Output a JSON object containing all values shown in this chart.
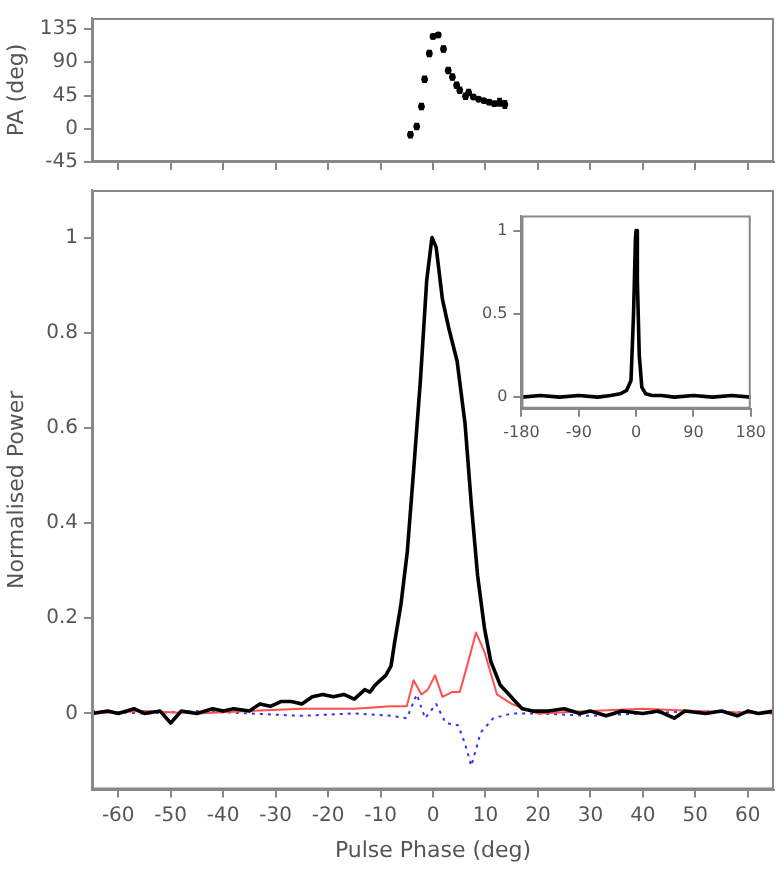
{
  "chart_data": [
    {
      "type": "scatter",
      "ylabel": "PA (deg)",
      "xlim": [
        -65,
        65
      ],
      "ylim": [
        -45,
        150
      ],
      "yticks": [
        -45,
        0,
        45,
        90,
        135
      ],
      "xticks": [
        -60,
        -50,
        -40,
        -30,
        -20,
        -10,
        0,
        10,
        20,
        30,
        40,
        50,
        60
      ],
      "tick_labels": "y",
      "grid": false,
      "series": [
        {
          "color": "#000000",
          "x": [
            -4.3,
            -3.1,
            -2.2,
            -1.6,
            -0.7,
            0,
            1.0,
            2.0,
            2.9,
            3.7,
            4.5,
            5.1,
            6.2,
            6.8,
            7.7,
            8.7,
            9.7,
            10.7,
            11.7,
            12.7,
            13.7
          ],
          "values": [
            -8,
            3,
            30,
            67,
            102,
            125,
            127,
            108,
            79,
            70,
            59,
            52,
            44,
            49,
            43,
            40,
            38,
            36,
            34,
            36,
            33
          ],
          "errors": [
            4,
            4,
            4,
            4,
            4,
            3,
            3,
            4,
            4,
            4,
            4,
            4,
            4,
            4,
            2,
            2,
            2,
            3,
            3,
            5,
            5
          ]
        }
      ]
    },
    {
      "type": "line",
      "xlabel": "Pulse Phase (deg)",
      "ylabel": "Normalised Power",
      "xlim": [
        -65,
        65
      ],
      "ylim": [
        -0.16,
        1.1
      ],
      "xticks": [
        -60,
        -50,
        -40,
        -30,
        -20,
        -10,
        0,
        10,
        20,
        30,
        40,
        50,
        60
      ],
      "yticks": [
        0,
        0.2,
        0.4,
        0.6,
        0.8,
        1
      ],
      "grid": false,
      "series": [
        {
          "color": "#000000",
          "line_style": "solid",
          "x": [
            -65,
            -62,
            -60,
            -57,
            -55,
            -52,
            -50,
            -48,
            -45,
            -42,
            -40,
            -38,
            -35,
            -33,
            -31,
            -29,
            -27,
            -25,
            -23,
            -21,
            -19,
            -17,
            -15,
            -14,
            -13,
            -12,
            -11,
            -10,
            -9,
            -8,
            -7.3,
            -6.1,
            -4.9,
            -3.7,
            -2.4,
            -1.2,
            -0.2,
            0.6,
            1.8,
            3.0,
            4.6,
            6.1,
            7.3,
            8.5,
            9.8,
            11,
            12.8,
            15.3,
            17,
            19,
            22,
            25,
            28,
            30,
            33,
            36,
            40,
            43,
            45,
            46,
            48,
            52,
            55,
            58,
            60,
            62,
            65
          ],
          "values": [
            0,
            0.005,
            0,
            0.01,
            0,
            0.005,
            -0.02,
            0.005,
            0,
            0.01,
            0.005,
            0.01,
            0.005,
            0.02,
            0.015,
            0.025,
            0.025,
            0.02,
            0.035,
            0.04,
            0.035,
            0.04,
            0.03,
            0.04,
            0.05,
            0.045,
            0.06,
            0.07,
            0.08,
            0.1,
            0.15,
            0.23,
            0.34,
            0.51,
            0.7,
            0.91,
            1.0,
            0.98,
            0.87,
            0.81,
            0.74,
            0.61,
            0.44,
            0.29,
            0.18,
            0.11,
            0.06,
            0.03,
            0.01,
            0.005,
            0.005,
            0.01,
            0,
            0.005,
            -0.005,
            0.005,
            0,
            0.005,
            -0.005,
            -0.01,
            0.005,
            0,
            0.005,
            -0.005,
            0.005,
            0,
            0.005
          ]
        },
        {
          "color": "#ff5050",
          "line_style": "solid",
          "x": [
            -65,
            -55,
            -45,
            -35,
            -25,
            -15,
            -8,
            -5,
            -3.7,
            -2.2,
            -1,
            0.4,
            1.8,
            3.6,
            5.1,
            6.5,
            8.2,
            9.8,
            12.2,
            15,
            20,
            30,
            40,
            50,
            65
          ],
          "values": [
            0,
            0.005,
            0,
            0.005,
            0.01,
            0.01,
            0.015,
            0.015,
            0.07,
            0.04,
            0.05,
            0.08,
            0.035,
            0.045,
            0.045,
            0.1,
            0.17,
            0.13,
            0.04,
            0.02,
            0,
            0.005,
            0.01,
            0.005,
            0
          ]
        },
        {
          "color": "#3030ff",
          "line_style": "dotted",
          "x": [
            -65,
            -55,
            -45,
            -35,
            -25,
            -15,
            -8,
            -5,
            -3.1,
            -1.5,
            0.6,
            2.4,
            4.8,
            6,
            7.3,
            9.1,
            11.5,
            15,
            20,
            30,
            40,
            50,
            65
          ],
          "values": [
            0.005,
            0,
            0.005,
            0,
            -0.005,
            0,
            -0.005,
            -0.01,
            0.04,
            -0.01,
            0.02,
            -0.02,
            -0.025,
            -0.06,
            -0.11,
            -0.04,
            -0.01,
            0,
            0,
            -0.005,
            0,
            0.005,
            0
          ]
        }
      ]
    },
    {
      "type": "line",
      "xlim": [
        -180,
        180
      ],
      "ylim": [
        -0.07,
        1.09
      ],
      "xticks": [
        -180,
        -90,
        0,
        90,
        180
      ],
      "yticks": [
        0,
        0.5,
        1
      ],
      "grid": false,
      "series": [
        {
          "color": "#000000",
          "line_style": "solid",
          "x": [
            -180,
            -150,
            -120,
            -90,
            -60,
            -40,
            -25,
            -15,
            -8,
            -4,
            -1,
            0,
            2,
            5,
            9,
            15,
            25,
            40,
            60,
            90,
            120,
            150,
            180
          ],
          "values": [
            0,
            0.01,
            0,
            0.01,
            0,
            0.01,
            0.02,
            0.04,
            0.1,
            0.5,
            0.95,
            1.0,
            0.7,
            0.25,
            0.06,
            0.02,
            0.01,
            0.01,
            0,
            0.01,
            0,
            0.01,
            0
          ]
        }
      ]
    }
  ]
}
